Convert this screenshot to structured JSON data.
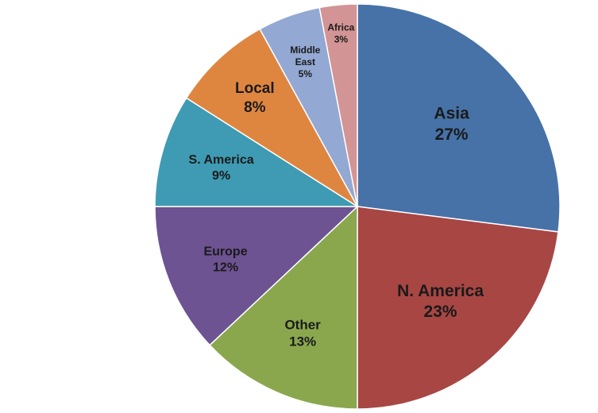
{
  "chart_data": {
    "type": "pie",
    "start_angle_deg": 0,
    "direction": "clockwise",
    "slices": [
      {
        "name": "Asia",
        "label": "27%",
        "value": 27,
        "color": "#4672A8",
        "font_size": 21
      },
      {
        "name": "N. America",
        "label": "23%",
        "value": 23,
        "color": "#A84644",
        "font_size": 21
      },
      {
        "name": "Other",
        "label": "13%",
        "value": 13,
        "color": "#8AA74E",
        "font_size": 17
      },
      {
        "name": "Europe",
        "label": "12%",
        "value": 12,
        "color": "#6D5392",
        "font_size": 16
      },
      {
        "name": "S. America",
        "label": "9%",
        "value": 9,
        "color": "#3E9BB3",
        "font_size": 16
      },
      {
        "name": "Local",
        "label": "8%",
        "value": 8,
        "color": "#DE8640",
        "font_size": 19
      },
      {
        "name": "Middle East",
        "label": "5%",
        "value": 5,
        "color": "#93A8D2",
        "font_size": 12,
        "lines": [
          "Middle",
          "East"
        ]
      },
      {
        "name": "Africa",
        "label": "3%",
        "value": 3,
        "color": "#D29494",
        "font_size": 12
      }
    ]
  }
}
